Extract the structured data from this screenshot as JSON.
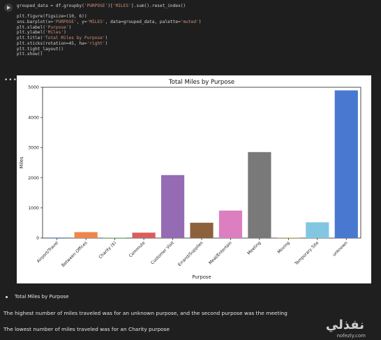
{
  "code_cell": {
    "lines": [
      [
        {
          "t": "grouped_data = df.groupby("
        },
        {
          "t": "'PURPOSE'",
          "s": 1
        },
        {
          "t": ")["
        },
        {
          "t": "'MILES'",
          "s": 1
        },
        {
          "t": "].sum().reset_index()"
        }
      ],
      [],
      [
        {
          "t": "plt.figure(figsize=(10, 6))"
        }
      ],
      [
        {
          "t": "sns.barplot(x="
        },
        {
          "t": "'PURPOSE'",
          "s": 1
        },
        {
          "t": ", y="
        },
        {
          "t": "'MILES'",
          "s": 1
        },
        {
          "t": ", data=grouped_data, palette="
        },
        {
          "t": "'muted'",
          "s": 1
        },
        {
          "t": ")"
        }
      ],
      [
        {
          "t": "plt.xlabel("
        },
        {
          "t": "'Purpose'",
          "s": 1
        },
        {
          "t": ")"
        }
      ],
      [
        {
          "t": "plt.ylabel("
        },
        {
          "t": "'Miles'",
          "s": 1
        },
        {
          "t": ")"
        }
      ],
      [
        {
          "t": "plt.title("
        },
        {
          "t": "'Total Miles by Purpose'",
          "s": 1
        },
        {
          "t": ")"
        }
      ],
      [
        {
          "t": "plt.xticks(rotation=45, ha="
        },
        {
          "t": "'right'",
          "s": 1
        },
        {
          "t": ")"
        }
      ],
      [
        {
          "t": "plt.tight_layout()"
        }
      ],
      [
        {
          "t": "plt.show()"
        }
      ]
    ]
  },
  "output": {
    "menu_icon": "ellipsis-icon",
    "menu_glyph": "•••"
  },
  "chart_data": {
    "type": "bar",
    "title": "Total Miles by Purpose",
    "xlabel": "Purpose",
    "ylabel": "Miles",
    "ylim": [
      0,
      5000
    ],
    "yticks": [
      "0",
      "1000",
      "2000",
      "3000",
      "4000",
      "5000"
    ],
    "grid": false,
    "categories": [
      "Airport/Travel",
      "Between Offices",
      "Charity ($)",
      "Commute",
      "Customer Visit",
      "Errand/Supplies",
      "Meal/Entertain",
      "Meeting",
      "Moving",
      "Temporary Site",
      "unknown"
    ],
    "values": [
      16,
      197,
      16,
      180,
      2089,
      508,
      912,
      2851,
      18,
      523,
      4897
    ],
    "colors": [
      "#4878d0",
      "#ee854a",
      "#6acc64",
      "#d65f5f",
      "#956cb4",
      "#8c613c",
      "#dc7ec0",
      "#797979",
      "#d5bb67",
      "#82c6e2",
      "#4878d0"
    ]
  },
  "text": {
    "bullet": "Total Miles by Purpose",
    "p1": "The highest number of miles traveled was for an unknown purpose, and the second purpose was the meeting",
    "p2": "The lowest number of miles traveled was for an Charity purpose"
  },
  "watermark": {
    "arabic": "نفذلي",
    "latin": "nofezly.com"
  }
}
